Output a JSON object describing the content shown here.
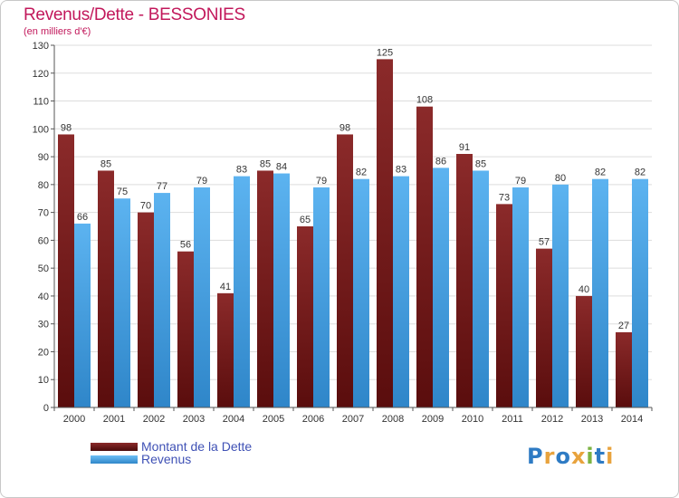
{
  "header": {
    "title": "Revenus/Dette - BESSONIES",
    "subtitle": "(en milliers d'€)"
  },
  "colors": {
    "debt": "#7f1d1d",
    "revenue": "#4aa3e6",
    "title": "#c2185b"
  },
  "legend": {
    "debt_label": "Montant de la Dette",
    "revenue_label": "Revenus"
  },
  "logo": {
    "letters": [
      "P",
      "r",
      "o",
      "x",
      "i",
      "t",
      "i"
    ],
    "colors": [
      "#2e7bc4",
      "#e8a33d",
      "#2e7bc4",
      "#e8a33d",
      "#7cb342",
      "#2e7bc4",
      "#e8a33d"
    ]
  },
  "chart_data": {
    "type": "bar",
    "categories": [
      "2000",
      "2001",
      "2002",
      "2003",
      "2004",
      "2005",
      "2006",
      "2007",
      "2008",
      "2009",
      "2010",
      "2011",
      "2012",
      "2013",
      "2014"
    ],
    "series": [
      {
        "name": "Montant de la Dette",
        "values": [
          98,
          85,
          70,
          56,
          41,
          85,
          65,
          98,
          125,
          108,
          91,
          73,
          57,
          40,
          27
        ]
      },
      {
        "name": "Revenus",
        "values": [
          66,
          75,
          77,
          79,
          83,
          84,
          79,
          82,
          83,
          86,
          85,
          79,
          80,
          82,
          82
        ]
      }
    ],
    "ylim": [
      0,
      130
    ],
    "ytick_step": 10,
    "grid": true,
    "legend_position": "bottom-left"
  }
}
